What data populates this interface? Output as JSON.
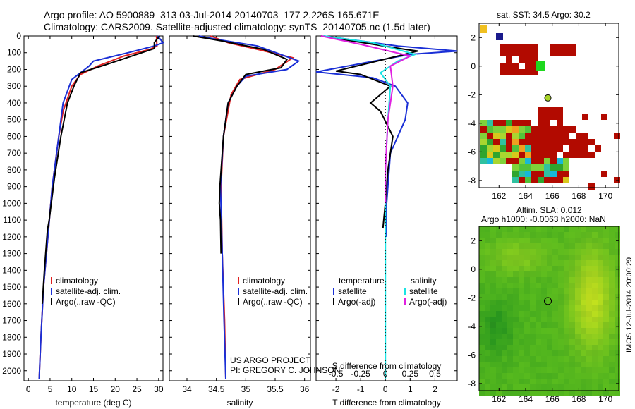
{
  "title": {
    "line1": "Argo profile: AO 5900889_313 03-Jul-2014 20140703_177 2.226S 165.671E",
    "line2": "Climatology: CARS2009. Satellite-adjusted climatology: synTS_20140705.nc (1.5d later)"
  },
  "credits": {
    "line1": "US ARGO PROJECT",
    "line2": "PI: GREGORY C. JOHNSON"
  },
  "timestamp": "IMOS 12-Jul-2014 20:00:29",
  "depth_ticks": [
    0,
    100,
    200,
    300,
    400,
    500,
    600,
    700,
    800,
    900,
    1000,
    1100,
    1200,
    1300,
    1400,
    1500,
    1600,
    1700,
    1800,
    1900,
    2000
  ],
  "colors": {
    "clim": "#e02020",
    "sat": "#1a2fd6",
    "argo": "#000000",
    "cyan": "#19e3e3",
    "magenta": "#e020e0",
    "land": "#b20a00"
  },
  "chart_data": [
    {
      "type": "line",
      "name": "temperature",
      "xlabel": "temperature (deg C)",
      "ylabel": "depth",
      "xlim": [
        -1,
        31
      ],
      "ylim": [
        2060,
        0
      ],
      "xticks": [
        0,
        5,
        10,
        15,
        20,
        25,
        30
      ],
      "legend": [
        "climatology",
        "satellite-adj. clim.",
        "Argo(..raw -QC)"
      ],
      "series": [
        {
          "name": "climatology",
          "color": "#e02020",
          "points": [
            [
              29.5,
              0
            ],
            [
              29.6,
              60
            ],
            [
              28,
              80
            ],
            [
              22,
              120
            ],
            [
              16,
              180
            ],
            [
              12,
              230
            ],
            [
              10,
              300
            ],
            [
              8,
              450
            ],
            [
              7,
              600
            ],
            [
              5.5,
              900
            ],
            [
              4.5,
              1200
            ],
            [
              3.5,
              1500
            ],
            [
              2.9,
              1800
            ],
            [
              2.5,
              2050
            ]
          ]
        },
        {
          "name": "satellite-adj. clim.",
          "color": "#1a2fd6",
          "points": [
            [
              29.8,
              0
            ],
            [
              31,
              40
            ],
            [
              29,
              60
            ],
            [
              23,
              100
            ],
            [
              15,
              150
            ],
            [
              14,
              180
            ],
            [
              12,
              220
            ],
            [
              10,
              260
            ],
            [
              8,
              400
            ],
            [
              7,
              600
            ],
            [
              5.5,
              900
            ],
            [
              4.5,
              1200
            ],
            [
              3.5,
              1500
            ],
            [
              2.9,
              1800
            ],
            [
              2.5,
              2050
            ]
          ]
        },
        {
          "name": "Argo(..raw -QC)",
          "color": "#000000",
          "points": [
            [
              30.2,
              0
            ],
            [
              29,
              40
            ],
            [
              29,
              75
            ],
            [
              25,
              110
            ],
            [
              18,
              170
            ],
            [
              12,
              220
            ],
            [
              10.5,
              300
            ],
            [
              9,
              400
            ],
            [
              7.5,
              600
            ],
            [
              6,
              850
            ],
            [
              4.8,
              1100
            ],
            [
              4.4,
              1160
            ],
            [
              3.7,
              1400
            ],
            [
              3.2,
              1600
            ]
          ]
        }
      ]
    },
    {
      "type": "line",
      "name": "salinity",
      "xlabel": "salinity",
      "xlim": [
        33.7,
        36.1
      ],
      "ylim": [
        2060,
        0
      ],
      "xticks": [
        34,
        34.5,
        35,
        35.5,
        36
      ],
      "legend": [
        "climatology",
        "satellite-adj. clim.",
        "Argo(..raw -QC)"
      ],
      "series": [
        {
          "name": "climatology",
          "color": "#e02020",
          "points": [
            [
              34.4,
              0
            ],
            [
              34.7,
              40
            ],
            [
              35.2,
              80
            ],
            [
              35.8,
              130
            ],
            [
              35.5,
              200
            ],
            [
              34.9,
              260
            ],
            [
              34.75,
              350
            ],
            [
              34.62,
              600
            ],
            [
              34.58,
              900
            ],
            [
              34.6,
              1300
            ],
            [
              34.64,
              1700
            ],
            [
              34.66,
              2050
            ]
          ]
        },
        {
          "name": "satellite-adj. clim.",
          "color": "#1a2fd6",
          "points": [
            [
              34.2,
              0
            ],
            [
              34.5,
              20
            ],
            [
              35.2,
              60
            ],
            [
              35.9,
              150
            ],
            [
              35.7,
              200
            ],
            [
              35.0,
              240
            ],
            [
              34.85,
              300
            ],
            [
              34.7,
              400
            ],
            [
              34.62,
              600
            ],
            [
              34.57,
              900
            ],
            [
              34.6,
              1300
            ],
            [
              34.63,
              1700
            ],
            [
              34.66,
              2050
            ]
          ]
        },
        {
          "name": "Argo(..raw -QC)",
          "color": "#000000",
          "points": [
            [
              34.1,
              0
            ],
            [
              34.6,
              30
            ],
            [
              35.3,
              80
            ],
            [
              35.7,
              140
            ],
            [
              35.6,
              190
            ],
            [
              35.0,
              230
            ],
            [
              34.85,
              300
            ],
            [
              34.7,
              400
            ],
            [
              34.62,
              600
            ],
            [
              34.56,
              900
            ],
            [
              34.55,
              1000
            ],
            [
              34.57,
              1100
            ],
            [
              34.58,
              1300
            ]
          ]
        }
      ]
    },
    {
      "type": "line",
      "name": "difference from climatology",
      "xlabel": "T difference from climatology",
      "top_axis_label": "S difference from climatology",
      "xlim": [
        -2.8,
        2.9
      ],
      "ylim": [
        2060,
        0
      ],
      "xticks": [
        -2,
        -1,
        0,
        1,
        2
      ],
      "top_ticks": [
        "-0.5",
        "-0.25",
        "0",
        "0.25",
        "0.5"
      ],
      "legend_titles": [
        "temperature",
        "salinity"
      ],
      "legend": [
        "satellite",
        "Argo(-adj)",
        "satellite",
        "Argo(-adj)"
      ],
      "series": [
        {
          "name": "T satellite",
          "color": "#1a2fd6",
          "points": [
            [
              -2.5,
              0
            ],
            [
              0.5,
              60
            ],
            [
              2.9,
              90
            ],
            [
              1,
              110
            ],
            [
              -2.8,
              215
            ],
            [
              -0.5,
              250
            ],
            [
              0.4,
              300
            ],
            [
              0.9,
              400
            ],
            [
              0.8,
              500
            ],
            [
              0.5,
              600
            ],
            [
              0.2,
              700
            ],
            [
              0.05,
              1000
            ],
            [
              0.05,
              1200
            ]
          ]
        },
        {
          "name": "T Argo(-adj)",
          "color": "#000000",
          "points": [
            [
              -2.6,
              0
            ],
            [
              0.8,
              80
            ],
            [
              1.3,
              90
            ],
            [
              0.5,
              120
            ],
            [
              -2.0,
              210
            ],
            [
              -1.0,
              230
            ],
            [
              0.2,
              300
            ],
            [
              -0.6,
              400
            ],
            [
              -0.2,
              450
            ],
            [
              0.3,
              600
            ],
            [
              0.1,
              800
            ],
            [
              0,
              1000
            ],
            [
              -0.1,
              1150
            ]
          ]
        },
        {
          "name": "S satellite",
          "color": "#19e3e3",
          "points": [
            [
              -2.5,
              0
            ],
            [
              -0.5,
              40
            ],
            [
              1.2,
              110
            ],
            [
              0.5,
              150
            ],
            [
              -0.2,
              220
            ],
            [
              0.2,
              300
            ],
            [
              0.1,
              500
            ],
            [
              0,
              800
            ],
            [
              0,
              1300
            ],
            [
              0,
              2050
            ]
          ]
        },
        {
          "name": "S Argo(-adj)",
          "color": "#e020e0",
          "points": [
            [
              -2.6,
              0
            ],
            [
              -1,
              50
            ],
            [
              1.0,
              120
            ],
            [
              0.2,
              180
            ],
            [
              0.3,
              300
            ],
            [
              0.1,
              500
            ],
            [
              0,
              800
            ],
            [
              0,
              1000
            ]
          ]
        }
      ]
    },
    {
      "type": "heatmap",
      "name": "sat SST map",
      "title": "sat. SST: 34.5  Argo: 30.2",
      "xlim": [
        160.5,
        171
      ],
      "ylim": [
        -8.5,
        3
      ],
      "xticks": [
        162,
        164,
        166,
        168,
        170
      ],
      "yticks": [
        2,
        0,
        -2,
        -4,
        -6,
        -8
      ],
      "argo_position": [
        165.671,
        -2.226
      ]
    },
    {
      "type": "heatmap",
      "name": "altimetry SLA map",
      "title1": "Altim. SLA: 0.012",
      "title2": "Argo h1000: -0.0063 h2000: NaN",
      "xlim": [
        160.5,
        171
      ],
      "ylim": [
        -8.5,
        3
      ],
      "xticks": [
        162,
        164,
        166,
        168,
        170
      ],
      "yticks": [
        2,
        0,
        -2,
        -4,
        -6,
        -8
      ],
      "argo_position": [
        165.671,
        -2.226
      ]
    }
  ]
}
